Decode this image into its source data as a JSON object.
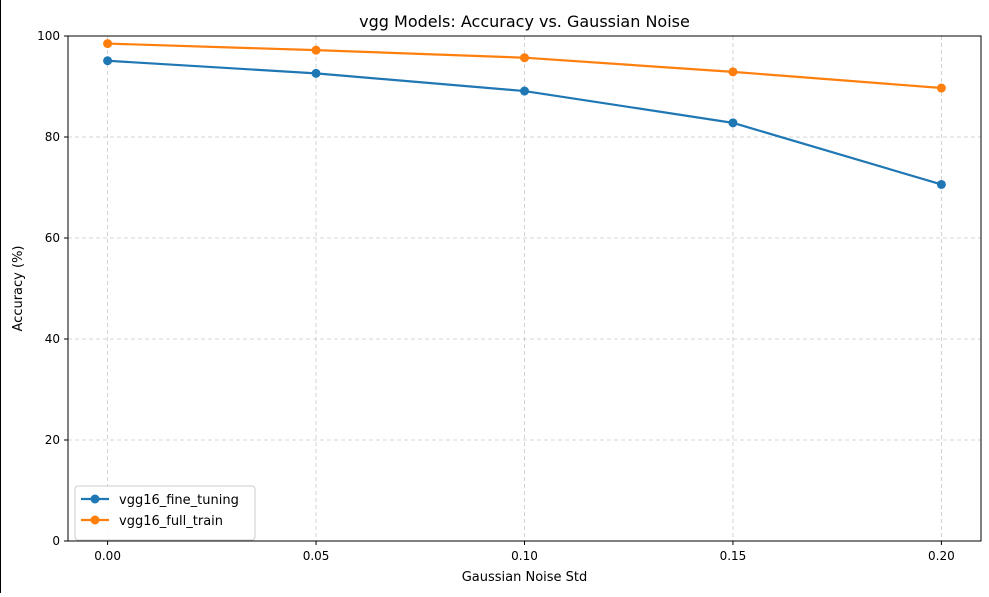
{
  "chart_data": {
    "type": "line",
    "title": "vgg Models: Accuracy vs. Gaussian Noise",
    "xlabel": "Gaussian Noise Std",
    "ylabel": "Accuracy (%)",
    "x": [
      0.0,
      0.05,
      0.1,
      0.15,
      0.2
    ],
    "x_tick_labels": [
      "0.00",
      "0.05",
      "0.10",
      "0.15",
      "0.20"
    ],
    "y_ticks": [
      0,
      20,
      40,
      60,
      80,
      100
    ],
    "y_tick_labels": [
      "0",
      "20",
      "40",
      "60",
      "80",
      "100"
    ],
    "xlim": [
      -0.0095,
      0.2095
    ],
    "ylim": [
      0,
      100
    ],
    "grid": true,
    "legend_position": "lower-left",
    "series": [
      {
        "name": "vgg16_fine_tuning",
        "color": "#1f77b4",
        "marker": "circle",
        "values": [
          95.1,
          92.6,
          89.1,
          82.8,
          70.6
        ]
      },
      {
        "name": "vgg16_full_train",
        "color": "#ff7f0e",
        "marker": "circle",
        "values": [
          98.5,
          97.2,
          95.7,
          92.9,
          89.7
        ]
      }
    ]
  }
}
